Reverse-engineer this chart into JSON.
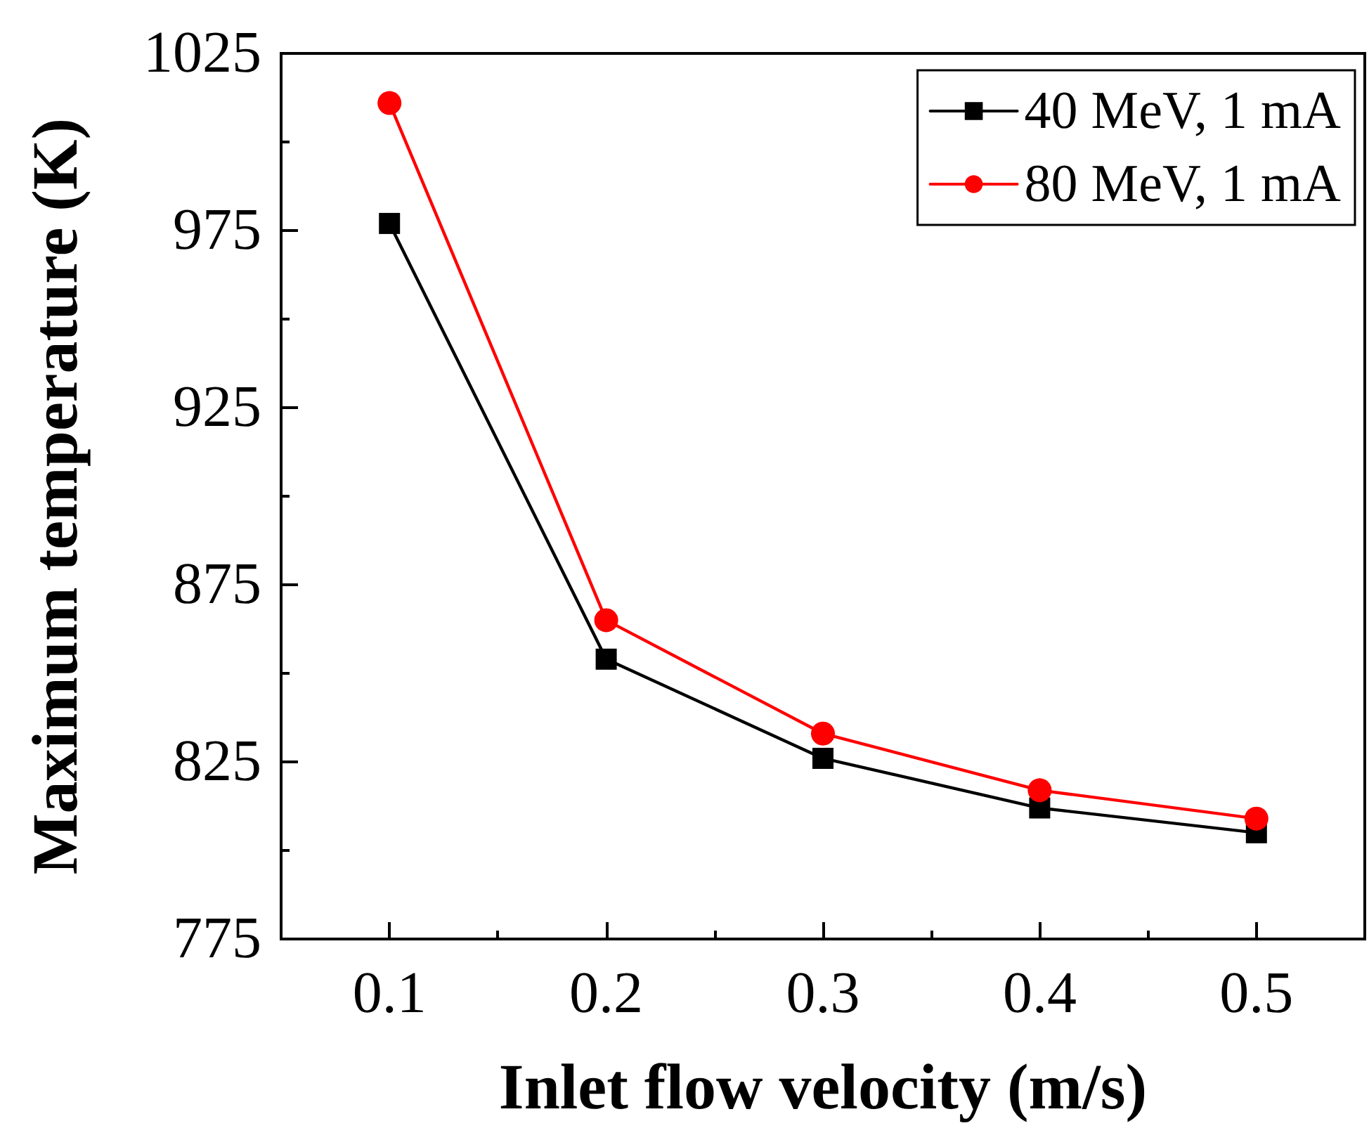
{
  "chart_data": {
    "type": "line",
    "xlabel": "Inlet flow velocity (m/s)",
    "ylabel": "Maximum temperature (K)",
    "x": [
      0.1,
      0.2,
      0.3,
      0.4,
      0.5
    ],
    "series": [
      {
        "name": "40 MeV, 1 mA",
        "color": "#000000",
        "marker": "square",
        "values": [
          977,
          854,
          826,
          812,
          805
        ]
      },
      {
        "name": "80 MeV, 1 mA",
        "color": "#ff0000",
        "marker": "circle",
        "values": [
          1011,
          865,
          833,
          817,
          809
        ]
      }
    ],
    "xlim": [
      0.05,
      0.55
    ],
    "xticks": [
      0.1,
      {
        "value": 0.15,
        "label": null
      },
      0.2,
      {
        "value": 0.25,
        "label": null
      },
      0.3,
      {
        "value": 0.35,
        "label": null
      },
      0.4,
      {
        "value": 0.45,
        "label": null
      },
      0.5
    ],
    "ylim": [
      775,
      1025
    ],
    "yticks": [
      775,
      {
        "value": 800,
        "label": null
      },
      825,
      {
        "value": 850,
        "label": null
      },
      875,
      {
        "value": 900,
        "label": null
      },
      925,
      {
        "value": 950,
        "label": null
      },
      975,
      {
        "value": 1000,
        "label": null
      },
      1025
    ],
    "legend": "top right",
    "grid": false,
    "line_style": "solid"
  }
}
